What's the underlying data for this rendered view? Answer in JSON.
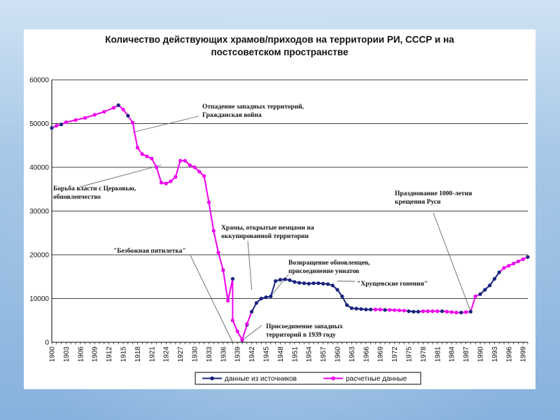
{
  "chart_data": {
    "type": "line",
    "title": "Количество действующих храмов/приходов на территории РИ, СССР и на постсоветском пространстве",
    "title_line1": "Количество действующих храмов/приходов на территории РИ, СССР и на",
    "title_line2": "постсоветском пространстве",
    "xlabel": "",
    "ylabel": "",
    "xlim": [
      1900,
      2000
    ],
    "ylim": [
      0,
      60000
    ],
    "grid": true,
    "legend_position": "bottom",
    "y_ticks": [
      "0",
      "10000",
      "20000",
      "30000",
      "40000",
      "50000",
      "60000"
    ],
    "x_ticks": [
      "1900",
      "1903",
      "1906",
      "1909",
      "1912",
      "1915",
      "1918",
      "1921",
      "1924",
      "1927",
      "1930",
      "1933",
      "1936",
      "1939",
      "1942",
      "1945",
      "1948",
      "1951",
      "1954",
      "1957",
      "1960",
      "1963",
      "1966",
      "1969",
      "1972",
      "1975",
      "1978",
      "1981",
      "1984",
      "1987",
      "1990",
      "1993",
      "1996",
      "1999"
    ],
    "series": [
      {
        "name": "данные из источников",
        "color": "#1a237e",
        "points": [
          [
            1900,
            49000
          ],
          [
            1902,
            49800
          ],
          [
            1914,
            54200
          ],
          [
            1916,
            51800
          ],
          [
            1938,
            14500
          ],
          [
            1940,
            500
          ],
          [
            1941,
            4000
          ],
          [
            1942,
            7000
          ],
          [
            1943,
            9000
          ],
          [
            1944,
            10000
          ],
          [
            1945,
            10300
          ],
          [
            1946,
            10500
          ],
          [
            1947,
            14000
          ],
          [
            1948,
            14300
          ],
          [
            1949,
            14400
          ],
          [
            1950,
            14200
          ],
          [
            1951,
            13800
          ],
          [
            1952,
            13600
          ],
          [
            1953,
            13500
          ],
          [
            1954,
            13400
          ],
          [
            1955,
            13500
          ],
          [
            1956,
            13500
          ],
          [
            1957,
            13400
          ],
          [
            1958,
            13300
          ],
          [
            1959,
            13000
          ],
          [
            1960,
            12000
          ],
          [
            1961,
            10500
          ],
          [
            1962,
            8500
          ],
          [
            1963,
            7800
          ],
          [
            1964,
            7700
          ],
          [
            1965,
            7600
          ],
          [
            1966,
            7500
          ],
          [
            1967,
            7500
          ],
          [
            1970,
            7400
          ],
          [
            1975,
            7100
          ],
          [
            1976,
            7000
          ],
          [
            1977,
            7000
          ],
          [
            1982,
            7100
          ],
          [
            1986,
            6800
          ],
          [
            1988,
            7000
          ],
          [
            1990,
            11000
          ],
          [
            1991,
            12000
          ],
          [
            1992,
            13000
          ],
          [
            1993,
            14500
          ],
          [
            1994,
            16000
          ],
          [
            2000,
            19500
          ]
        ]
      },
      {
        "name": "расчетные данные",
        "color": "#ee00ee",
        "points": [
          [
            1901,
            49500
          ],
          [
            1903,
            50300
          ],
          [
            1905,
            50800
          ],
          [
            1907,
            51300
          ],
          [
            1909,
            52000
          ],
          [
            1911,
            52700
          ],
          [
            1913,
            53600
          ],
          [
            1915,
            53200
          ],
          [
            1917,
            50200
          ],
          [
            1918,
            44500
          ],
          [
            1919,
            43000
          ],
          [
            1920,
            42500
          ],
          [
            1921,
            42000
          ],
          [
            1922,
            40000
          ],
          [
            1923,
            36500
          ],
          [
            1924,
            36300
          ],
          [
            1925,
            36800
          ],
          [
            1926,
            37800
          ],
          [
            1927,
            41500
          ],
          [
            1928,
            41500
          ],
          [
            1929,
            40500
          ],
          [
            1930,
            40000
          ],
          [
            1931,
            39000
          ],
          [
            1932,
            38000
          ],
          [
            1933,
            32000
          ],
          [
            1934,
            25500
          ],
          [
            1935,
            20500
          ],
          [
            1936,
            16500
          ],
          [
            1937,
            9500
          ],
          [
            1938,
            5000
          ],
          [
            1939,
            2500
          ],
          [
            1940,
            600
          ],
          [
            1941,
            4200
          ],
          [
            1968,
            7500
          ],
          [
            1969,
            7500
          ],
          [
            1971,
            7400
          ],
          [
            1972,
            7350
          ],
          [
            1973,
            7300
          ],
          [
            1974,
            7250
          ],
          [
            1978,
            7100
          ],
          [
            1979,
            7100
          ],
          [
            1980,
            7100
          ],
          [
            1981,
            7100
          ],
          [
            1983,
            7000
          ],
          [
            1984,
            6900
          ],
          [
            1985,
            6800
          ],
          [
            1987,
            6900
          ],
          [
            1989,
            10500
          ],
          [
            1995,
            17000
          ],
          [
            1996,
            17500
          ],
          [
            1997,
            18000
          ],
          [
            1998,
            18500
          ],
          [
            1999,
            19000
          ]
        ]
      }
    ],
    "annotations": [
      {
        "lines": [
          "Отпадение западных территорий,",
          "Гражданская война"
        ],
        "x": 1917,
        "y": 48000
      },
      {
        "lines": [
          "Борьба власти с Церковью,",
          "обновленчество"
        ],
        "x": 1923,
        "y": 40500
      },
      {
        "lines": [
          "Храмы, открытые немцами на",
          "оккупированной    территории"
        ],
        "x": 1942,
        "y": 12000
      },
      {
        "lines": [
          "\"Безбожная пятилетка\""
        ],
        "x": 1938,
        "y": 0
      },
      {
        "lines": [
          "Возвращение обновленцев,",
          "присоединение униатов"
        ],
        "x": 1946,
        "y": 10500
      },
      {
        "lines": [
          "\"Хрущевские гонения\""
        ],
        "x": 1960,
        "y": 14000
      },
      {
        "lines": [
          "Присоединение западных",
          "территорий в  1939 году"
        ],
        "x": 1940,
        "y": 500
      },
      {
        "lines": [
          "Празднование 1000-летия",
          "крещения Руси"
        ],
        "x": 1988,
        "y": 7000
      }
    ]
  }
}
